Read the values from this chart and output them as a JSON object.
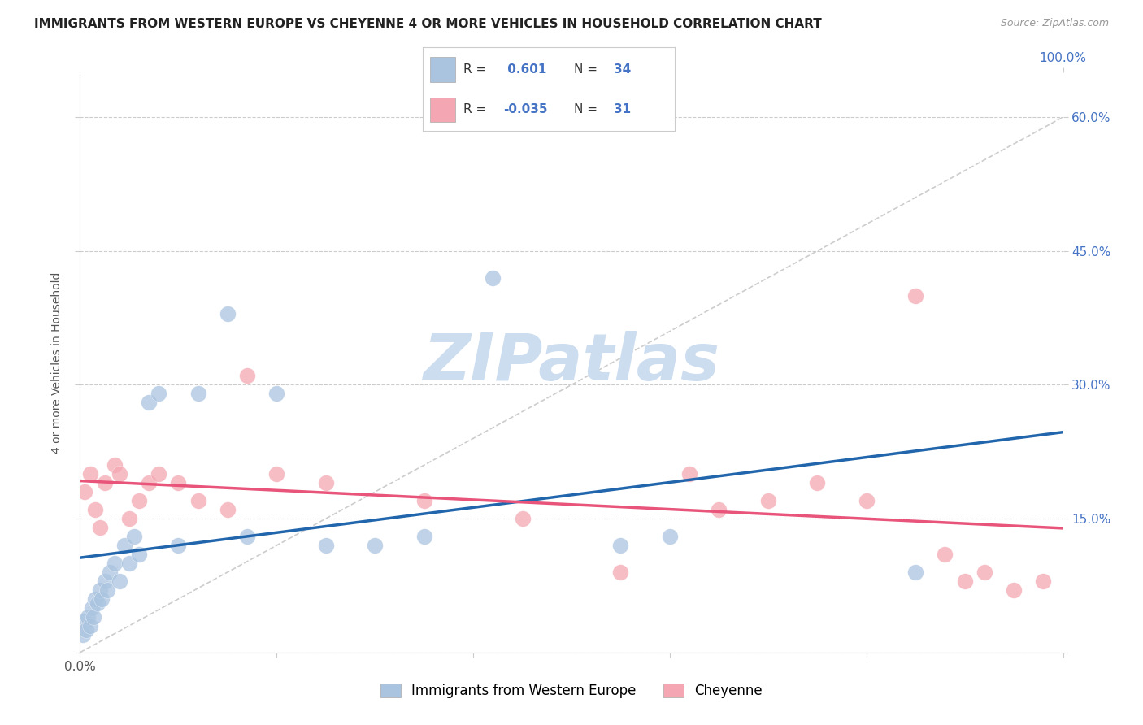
{
  "title": "IMMIGRANTS FROM WESTERN EUROPE VS CHEYENNE 4 OR MORE VEHICLES IN HOUSEHOLD CORRELATION CHART",
  "source": "Source: ZipAtlas.com",
  "ylabel": "4 or more Vehicles in Household",
  "xlim": [
    0,
    100
  ],
  "ylim": [
    0,
    65
  ],
  "x_ticks": [
    0,
    20,
    40,
    60,
    80,
    100
  ],
  "y_ticks": [
    0,
    15,
    30,
    45,
    60
  ],
  "y_tick_labels": [
    "",
    "15.0%",
    "30.0%",
    "45.0%",
    "60.0%"
  ],
  "blue_R": 0.601,
  "blue_N": 34,
  "pink_R": -0.035,
  "pink_N": 31,
  "blue_color": "#aac4e0",
  "pink_color": "#f4a7b2",
  "blue_line_color": "#2166ac",
  "pink_line_color": "#e8547a",
  "watermark": "ZIPatlas",
  "watermark_color": "#ccddf0",
  "legend_label_blue": "Immigrants from Western Europe",
  "legend_label_pink": "Cheyenne",
  "blue_points_x": [
    0.3,
    0.5,
    0.6,
    0.8,
    1.0,
    1.2,
    1.4,
    1.5,
    1.8,
    2.0,
    2.2,
    2.5,
    2.8,
    3.0,
    3.5,
    4.0,
    4.5,
    5.0,
    5.5,
    6.0,
    7.0,
    8.0,
    10.0,
    12.0,
    15.0,
    17.0,
    20.0,
    25.0,
    30.0,
    35.0,
    42.0,
    55.0,
    60.0,
    85.0
  ],
  "blue_points_y": [
    2.0,
    3.5,
    2.5,
    4.0,
    3.0,
    5.0,
    4.0,
    6.0,
    5.5,
    7.0,
    6.0,
    8.0,
    7.0,
    9.0,
    10.0,
    8.0,
    12.0,
    10.0,
    13.0,
    11.0,
    28.0,
    29.0,
    12.0,
    29.0,
    38.0,
    13.0,
    29.0,
    12.0,
    12.0,
    13.0,
    42.0,
    12.0,
    13.0,
    9.0
  ],
  "pink_points_x": [
    0.5,
    1.0,
    1.5,
    2.0,
    2.5,
    3.5,
    4.0,
    5.0,
    6.0,
    7.0,
    8.0,
    10.0,
    12.0,
    15.0,
    17.0,
    20.0,
    25.0,
    35.0,
    45.0,
    55.0,
    62.0,
    65.0,
    70.0,
    75.0,
    80.0,
    85.0,
    88.0,
    90.0,
    92.0,
    95.0,
    98.0
  ],
  "pink_points_y": [
    18.0,
    20.0,
    16.0,
    14.0,
    19.0,
    21.0,
    20.0,
    15.0,
    17.0,
    19.0,
    20.0,
    19.0,
    17.0,
    16.0,
    31.0,
    20.0,
    19.0,
    17.0,
    15.0,
    9.0,
    20.0,
    16.0,
    17.0,
    19.0,
    17.0,
    40.0,
    11.0,
    8.0,
    9.0,
    7.0,
    8.0
  ],
  "grid_color": "#cccccc",
  "background_color": "#ffffff",
  "title_fontsize": 11,
  "tick_fontsize": 11,
  "legend_fontsize": 12,
  "ref_line_color": "#c0c0c0"
}
